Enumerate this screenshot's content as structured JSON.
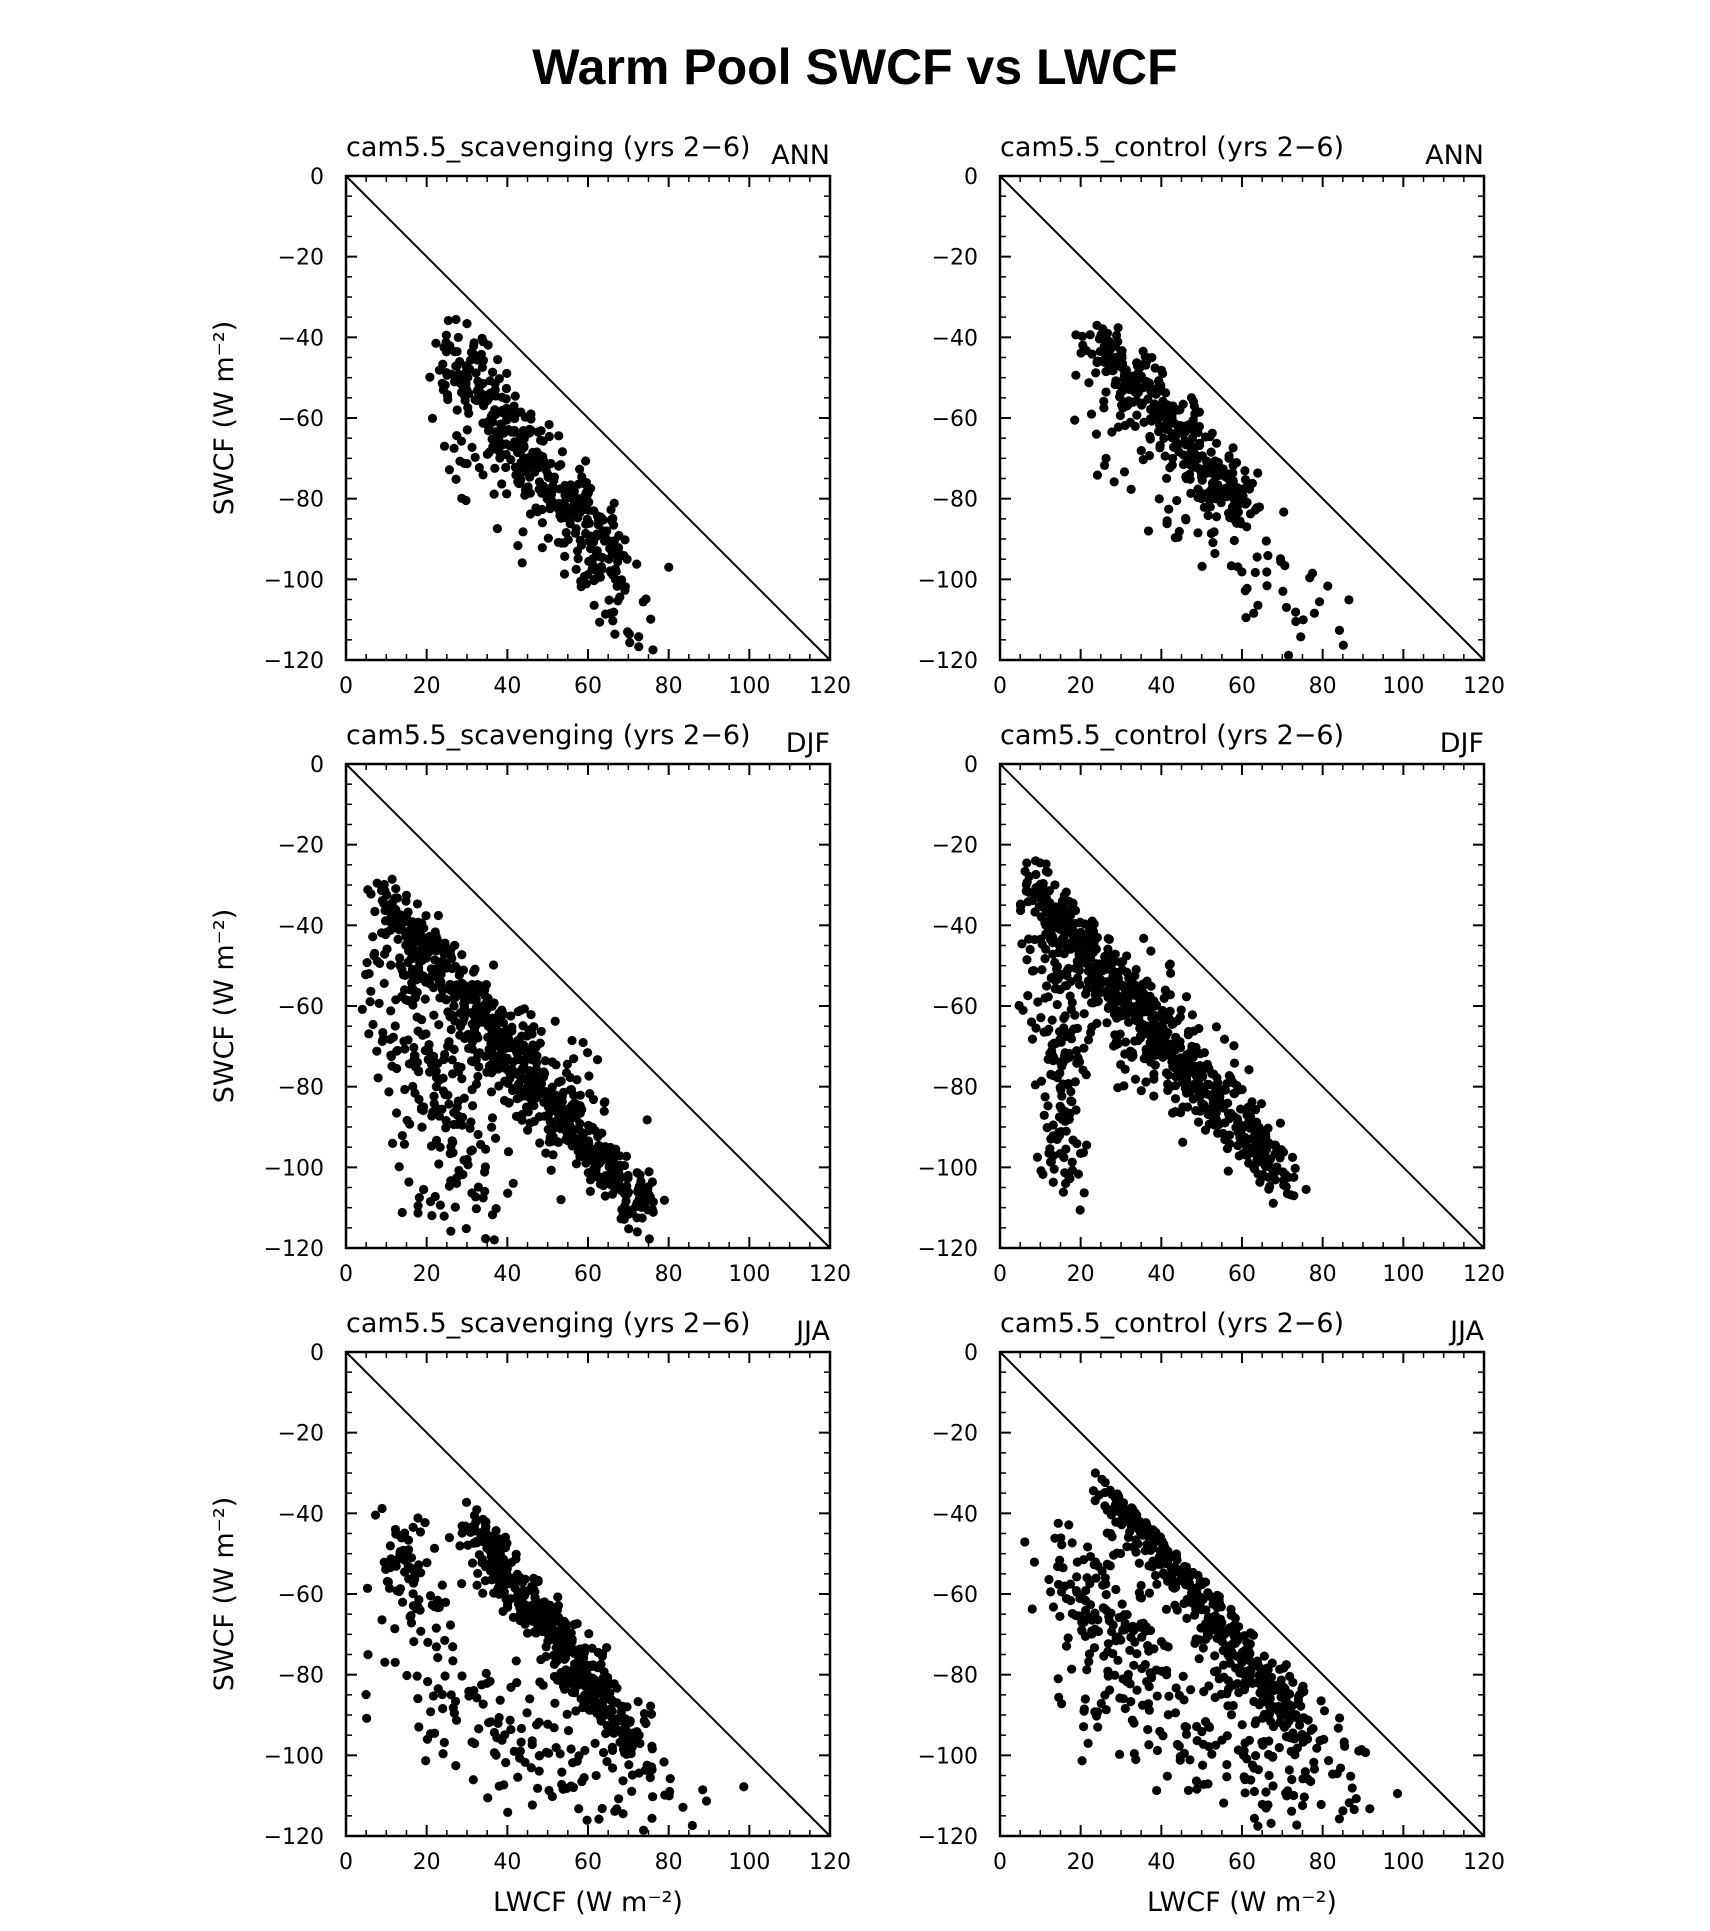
{
  "title": "Warm Pool SWCF vs LWCF",
  "chart_data": [
    {
      "type": "scatter",
      "title": "cam5.5_scavenging (yrs 2−6)",
      "season": "ANN",
      "xlabel": "",
      "ylabel": "SWCF (W m⁻²)",
      "xlim": [
        0,
        120
      ],
      "ylim": [
        -120,
        0
      ],
      "xticks": [
        "0",
        "20",
        "40",
        "60",
        "80",
        "100",
        "120"
      ],
      "yticks": [
        "0",
        "−20",
        "−40",
        "−60",
        "−80",
        "−100",
        "−120"
      ],
      "reference_line": [
        [
          0,
          0
        ],
        [
          120,
          -120
        ]
      ],
      "clusters": [
        {
          "start": [
            25,
            -44
          ],
          "end": [
            68,
            -97
          ],
          "spread": [
            2.5,
            6.0
          ],
          "n": 360
        },
        {
          "start": [
            23,
            -60
          ],
          "end": [
            80,
            -118
          ],
          "spread": [
            3.0,
            7.0
          ],
          "n": 80
        }
      ]
    },
    {
      "type": "scatter",
      "title": "cam5.5_control (yrs 2−6)",
      "season": "ANN",
      "xlabel": "",
      "ylabel": "",
      "xlim": [
        0,
        120
      ],
      "ylim": [
        -120,
        0
      ],
      "xticks": [
        "0",
        "20",
        "40",
        "60",
        "80",
        "100",
        "120"
      ],
      "yticks": [
        "0",
        "−20",
        "−40",
        "−60",
        "−80",
        "−100",
        "−120"
      ],
      "reference_line": [
        [
          0,
          0
        ],
        [
          120,
          -120
        ]
      ],
      "clusters": [
        {
          "start": [
            24,
            -40
          ],
          "end": [
            62,
            -84
          ],
          "spread": [
            2.5,
            4.0
          ],
          "n": 340
        },
        {
          "start": [
            24,
            -60
          ],
          "end": [
            83,
            -116
          ],
          "spread": [
            3.5,
            8.0
          ],
          "n": 90
        }
      ]
    },
    {
      "type": "scatter",
      "title": "cam5.5_scavenging (yrs 2−6)",
      "season": "DJF",
      "xlabel": "",
      "ylabel": "SWCF (W m⁻²)",
      "xlim": [
        0,
        120
      ],
      "ylim": [
        -120,
        0
      ],
      "xticks": [
        "0",
        "20",
        "40",
        "60",
        "80",
        "100",
        "120"
      ],
      "yticks": [
        "0",
        "−20",
        "−40",
        "−60",
        "−80",
        "−100",
        "−120"
      ],
      "reference_line": [
        [
          0,
          0
        ],
        [
          120,
          -120
        ]
      ],
      "clusters": [
        {
          "start": [
            9,
            -33
          ],
          "end": [
            75,
            -112
          ],
          "spread": [
            3.0,
            3.5
          ],
          "n": 600
        },
        {
          "start": [
            10,
            -45
          ],
          "end": [
            30,
            -110
          ],
          "spread": [
            6.0,
            6.0
          ],
          "n": 200
        },
        {
          "start": [
            25,
            -60
          ],
          "end": [
            55,
            -90
          ],
          "spread": [
            8.0,
            8.0
          ],
          "n": 150
        }
      ]
    },
    {
      "type": "scatter",
      "title": "cam5.5_control (yrs 2−6)",
      "season": "DJF",
      "xlabel": "",
      "ylabel": "",
      "xlim": [
        0,
        120
      ],
      "ylim": [
        -120,
        0
      ],
      "xticks": [
        "0",
        "20",
        "40",
        "60",
        "80",
        "100",
        "120"
      ],
      "yticks": [
        "0",
        "−20",
        "−40",
        "−60",
        "−80",
        "−100",
        "−120"
      ],
      "reference_line": [
        [
          0,
          0
        ],
        [
          120,
          -120
        ]
      ],
      "clusters": [
        {
          "start": [
            8,
            -30
          ],
          "end": [
            72,
            -105
          ],
          "spread": [
            3.0,
            3.5
          ],
          "n": 600
        },
        {
          "start": [
            12,
            -40
          ],
          "end": [
            16,
            -105
          ],
          "spread": [
            3.0,
            5.0
          ],
          "n": 150
        },
        {
          "start": [
            20,
            -50
          ],
          "end": [
            50,
            -80
          ],
          "spread": [
            8.0,
            8.0
          ],
          "n": 150
        }
      ]
    },
    {
      "type": "scatter",
      "title": "cam5.5_scavenging (yrs 2−6)",
      "season": "JJA",
      "xlabel": "LWCF (W m⁻²)",
      "ylabel": "SWCF (W m⁻²)",
      "xlim": [
        0,
        120
      ],
      "ylim": [
        -120,
        0
      ],
      "xticks": [
        "0",
        "20",
        "40",
        "60",
        "80",
        "100",
        "120"
      ],
      "yticks": [
        "0",
        "−20",
        "−40",
        "−60",
        "−80",
        "−100",
        "−120"
      ],
      "reference_line": [
        [
          0,
          0
        ],
        [
          120,
          -120
        ]
      ],
      "clusters": [
        {
          "start": [
            31,
            -43
          ],
          "end": [
            72,
            -97
          ],
          "spread": [
            2.5,
            3.5
          ],
          "n": 420
        },
        {
          "start": [
            12,
            -45
          ],
          "end": [
            20,
            -68
          ],
          "spread": [
            4.0,
            6.0
          ],
          "n": 80
        },
        {
          "start": [
            20,
            -80
          ],
          "end": [
            80,
            -115
          ],
          "spread": [
            12.0,
            8.0
          ],
          "n": 180
        }
      ]
    },
    {
      "type": "scatter",
      "title": "cam5.5_control (yrs 2−6)",
      "season": "JJA",
      "xlabel": "LWCF (W m⁻²)",
      "ylabel": "",
      "xlim": [
        0,
        120
      ],
      "ylim": [
        -120,
        0
      ],
      "xticks": [
        "0",
        "20",
        "40",
        "60",
        "80",
        "100",
        "120"
      ],
      "yticks": [
        "0",
        "−20",
        "−40",
        "−60",
        "−80",
        "−100",
        "−120"
      ],
      "reference_line": [
        [
          0,
          0
        ],
        [
          120,
          -120
        ]
      ],
      "clusters": [
        {
          "start": [
            26,
            -32
          ],
          "end": [
            75,
            -95
          ],
          "spread": [
            2.5,
            3.5
          ],
          "n": 400
        },
        {
          "start": [
            15,
            -55
          ],
          "end": [
            35,
            -75
          ],
          "spread": [
            5.0,
            8.0
          ],
          "n": 150
        },
        {
          "start": [
            35,
            -85
          ],
          "end": [
            80,
            -110
          ],
          "spread": [
            12.0,
            8.0
          ],
          "n": 200
        }
      ]
    }
  ]
}
